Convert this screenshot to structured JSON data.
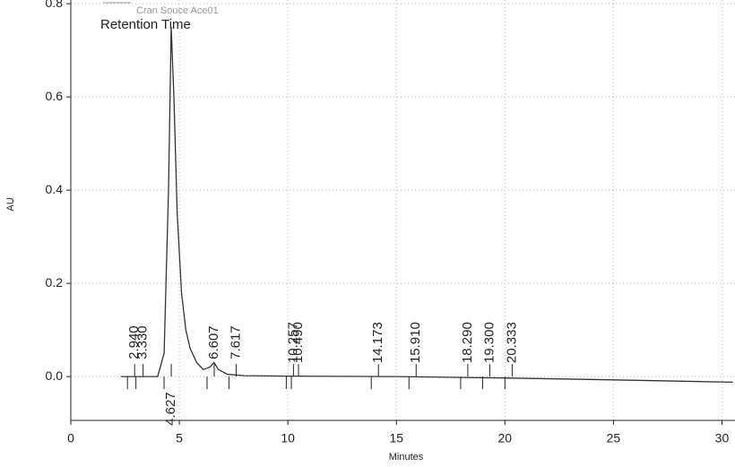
{
  "chart_data": {
    "type": "line",
    "legend": "Cran Souce Ace01",
    "annotation": "Retention Time",
    "x_label": "Minutes",
    "y_label": "AU",
    "x": [
      2.3,
      3,
      4,
      4.3,
      4.5,
      4.627,
      4.75,
      4.9,
      5.1,
      5.3,
      5.5,
      5.8,
      6.1,
      6.4,
      6.6,
      6.8,
      7.2,
      8,
      10,
      15,
      20,
      25,
      30.5
    ],
    "values": [
      0,
      0,
      0,
      0.05,
      0.4,
      0.75,
      0.6,
      0.35,
      0.18,
      0.1,
      0.06,
      0.03,
      0.015,
      0.02,
      0.03,
      0.015,
      0.005,
      0.002,
      0.001,
      0,
      -0.003,
      -0.007,
      -0.012
    ],
    "color": "#333333",
    "peaks": [
      {
        "value": 2.94,
        "label": "2.940"
      },
      {
        "value": 3.33,
        "label": "3.330"
      },
      {
        "value": 4.627,
        "label": "4.627"
      },
      {
        "value": 6.607,
        "label": "6.607"
      },
      {
        "value": 7.617,
        "label": "7.617"
      },
      {
        "value": 10.257,
        "label": "10.257"
      },
      {
        "value": 10.49,
        "label": "10.490"
      },
      {
        "value": 14.173,
        "label": "14.173"
      },
      {
        "value": 15.91,
        "label": "15.910"
      },
      {
        "value": 18.29,
        "label": "18.290"
      },
      {
        "value": 19.3,
        "label": "19.300"
      },
      {
        "value": 20.333,
        "label": "20.333"
      }
    ],
    "xlim": [
      0,
      30.6
    ],
    "ylim": [
      -0.094,
      0.808
    ],
    "xticks": [
      0,
      5,
      10,
      15,
      20,
      25,
      30
    ],
    "yticks": [
      {
        "value": 0,
        "label": "0.0"
      },
      0.2,
      0.4,
      0.6,
      0.8
    ],
    "grid": true
  }
}
